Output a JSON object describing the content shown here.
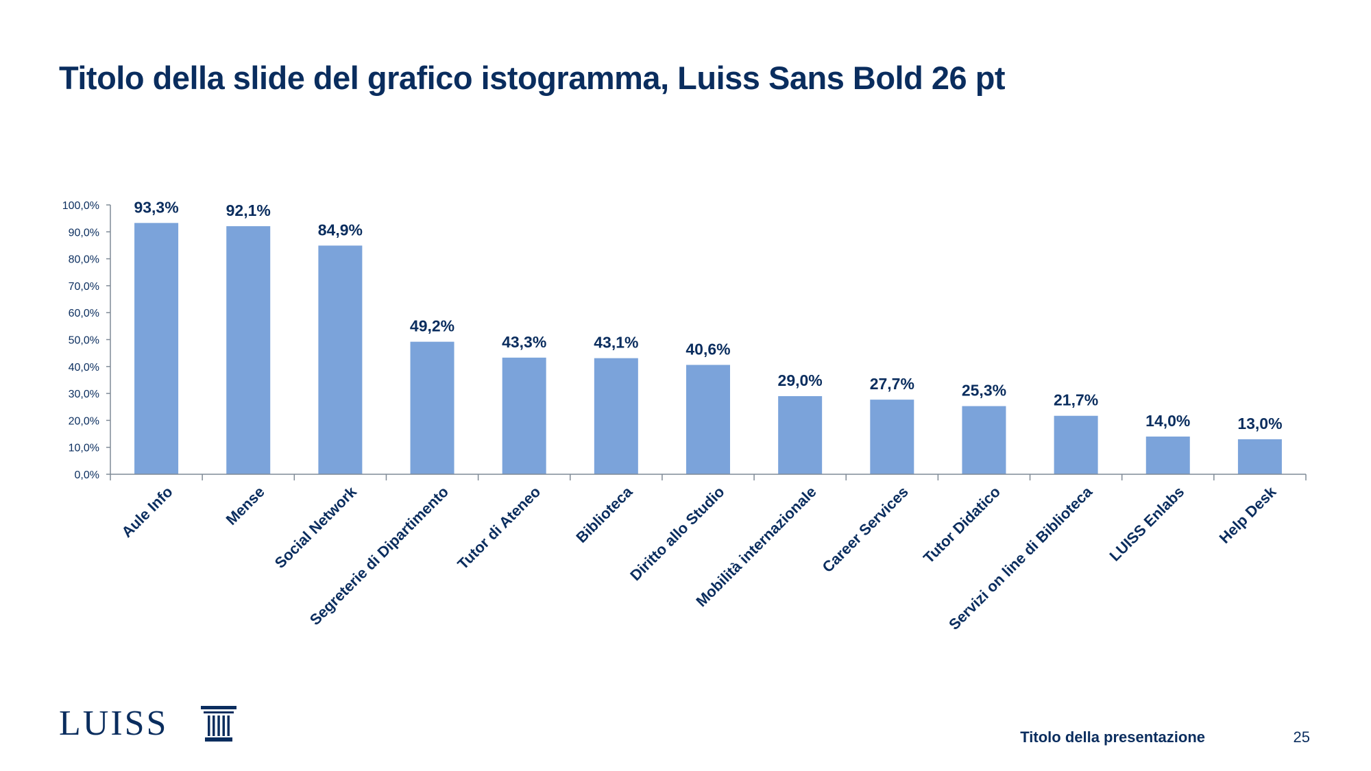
{
  "slide": {
    "title": "Titolo della slide del grafico istogramma, Luiss Sans Bold 26 pt"
  },
  "footer": {
    "logo_text": "LUISS",
    "presentation_title": "Titolo della presentazione",
    "page_number": "25"
  },
  "colors": {
    "bar": "#7ba3da",
    "text": "#0a2d5e",
    "axis": "#7f8a96"
  },
  "chart_data": {
    "type": "bar",
    "categories": [
      "Aule Info",
      "Mense",
      "Social Network",
      "Segreterie di Dipartimento",
      "Tutor di Ateneo",
      "Biblioteca",
      "Diritto allo Studio",
      "Mobilità internazionale",
      "Career Services",
      "Tutor Didatico",
      "Servizi on line di Biblioteca",
      "LUISS Enlabs",
      "Help Desk"
    ],
    "values": [
      93.3,
      92.1,
      84.9,
      49.2,
      43.3,
      43.1,
      40.6,
      29.0,
      27.7,
      25.3,
      21.7,
      14.0,
      13.0
    ],
    "data_labels": [
      "93,3%",
      "92,1%",
      "84,9%",
      "49,2%",
      "43,3%",
      "43,1%",
      "40,6%",
      "29,0%",
      "27,7%",
      "25,3%",
      "21,7%",
      "14,0%",
      "13,0%"
    ],
    "y_ticks": [
      0,
      10,
      20,
      30,
      40,
      50,
      60,
      70,
      80,
      90,
      100
    ],
    "y_tick_labels": [
      "0,0%",
      "10,0%",
      "20,0%",
      "30,0%",
      "40,0%",
      "50,0%",
      "60,0%",
      "70,0%",
      "80,0%",
      "90,0%",
      "100,0%"
    ],
    "ylim": [
      0,
      100
    ],
    "grid": false,
    "legend": "none"
  }
}
